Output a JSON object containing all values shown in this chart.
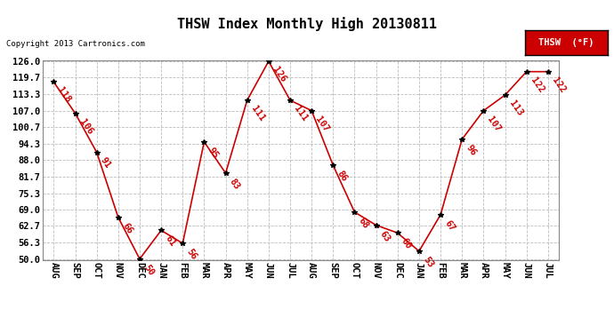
{
  "title": "THSW Index Monthly High 20130811",
  "copyright": "Copyright 2013 Cartronics.com",
  "legend_label": "THSW  (°F)",
  "months": [
    "AUG",
    "SEP",
    "OCT",
    "NOV",
    "DEC",
    "JAN",
    "FEB",
    "MAR",
    "APR",
    "MAY",
    "JUN",
    "JUL",
    "AUG",
    "SEP",
    "OCT",
    "NOV",
    "DEC",
    "JAN",
    "FEB",
    "MAR",
    "APR",
    "MAY",
    "JUN",
    "JUL"
  ],
  "values": [
    118,
    106,
    91,
    66,
    50,
    61,
    56,
    95,
    83,
    111,
    126,
    111,
    107,
    86,
    68,
    63,
    60,
    53,
    67,
    96,
    107,
    113,
    122,
    122
  ],
  "ylim_min": 50.0,
  "ylim_max": 126.0,
  "yticks": [
    50.0,
    56.3,
    62.7,
    69.0,
    75.3,
    81.7,
    88.0,
    94.3,
    100.7,
    107.0,
    113.3,
    119.7,
    126.0
  ],
  "line_color": "#cc0000",
  "marker_color": "#000000",
  "bg_color": "#ffffff",
  "grid_color": "#bbbbbb",
  "title_fontsize": 11,
  "label_fontsize": 7.5,
  "annotation_fontsize": 7.5,
  "legend_bg": "#cc0000",
  "legend_text_color": "#ffffff",
  "fig_width": 6.9,
  "fig_height": 3.75,
  "dpi": 100
}
